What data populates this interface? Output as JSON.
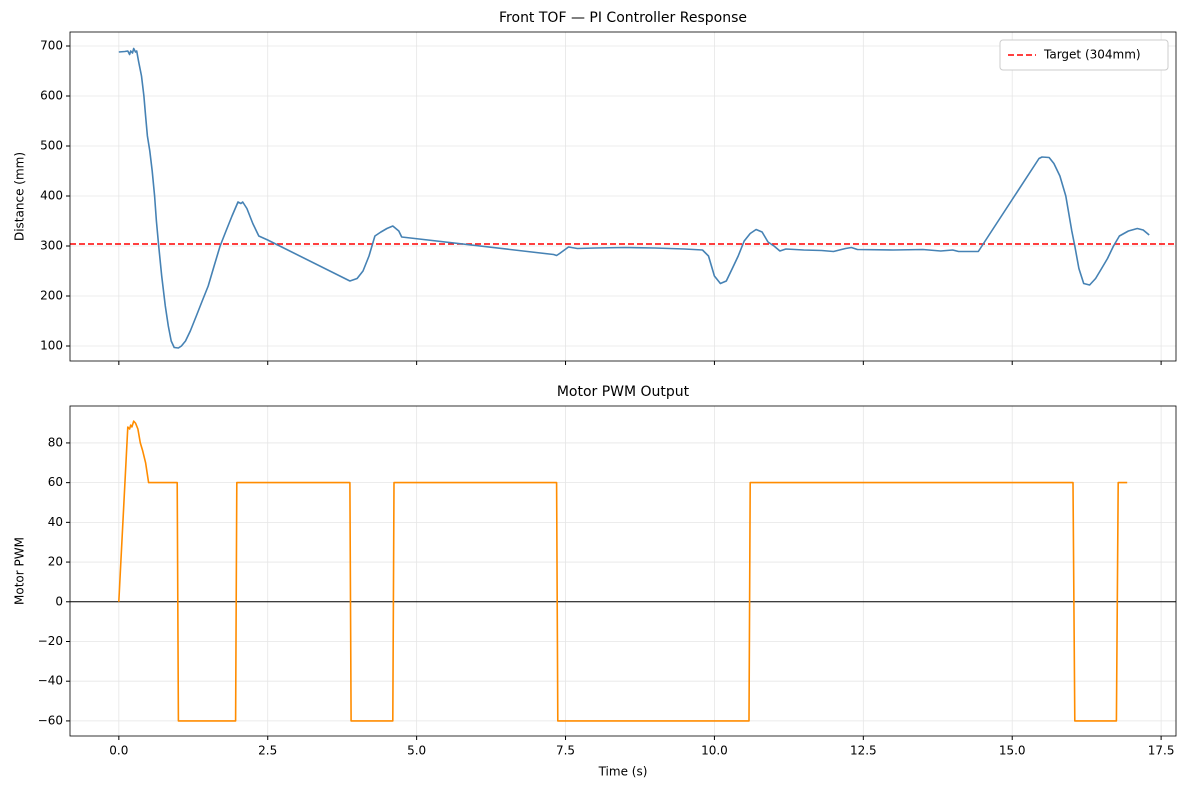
{
  "chart_data": [
    {
      "type": "line",
      "title": "Front TOF — PI Controller Response",
      "ylabel": "Distance (mm)",
      "xlim": [
        -0.82,
        17.75
      ],
      "ylim": [
        70,
        728
      ],
      "xticks": [
        {
          "value": 0,
          "label": "0.0"
        },
        2.5,
        {
          "value": 5,
          "label": "5.0"
        },
        7.5,
        {
          "value": 10,
          "label": "10.0"
        },
        12.5,
        {
          "value": 15,
          "label": "15.0"
        },
        17.5
      ],
      "yticks": [
        100,
        200,
        300,
        400,
        500,
        600,
        700
      ],
      "grid": true,
      "legend": "upper right",
      "series": [
        {
          "color": "#4682b4",
          "x": [
            0,
            0.1,
            0.15,
            0.18,
            0.2,
            0.23,
            0.25,
            0.28,
            0.3,
            0.33,
            0.38,
            0.42,
            0.45,
            0.48,
            0.52,
            0.56,
            0.6,
            0.63,
            0.67,
            0.72,
            0.78,
            0.83,
            0.88,
            0.93,
            1.0,
            1.05,
            1.12,
            1.2,
            1.3,
            1.4,
            1.5,
            1.6,
            1.7,
            1.8,
            1.9,
            2.0,
            2.05,
            2.08,
            2.15,
            2.25,
            2.35,
            2.5,
            3.88,
            4.0,
            4.1,
            4.2,
            4.3,
            4.4,
            4.5,
            4.6,
            4.7,
            4.75,
            7.3,
            7.35,
            7.4,
            7.55,
            7.7,
            8.0,
            8.5,
            9.0,
            9.5,
            9.8,
            9.9,
            10.0,
            10.1,
            10.2,
            10.3,
            10.4,
            10.5,
            10.6,
            10.7,
            10.8,
            10.9,
            11.0,
            11.1,
            11.2,
            11.5,
            11.8,
            12.0,
            12.2,
            12.3,
            12.4,
            13.0,
            13.5,
            13.8,
            14.0,
            14.1,
            14.43,
            15.45,
            15.5,
            15.62,
            15.7,
            15.8,
            15.9,
            16.0,
            16.05,
            16.12,
            16.2,
            16.3,
            16.4,
            16.5,
            16.6,
            16.7,
            16.8,
            16.95,
            17.1,
            17.2,
            17.3
          ],
          "values": [
            688,
            689,
            690,
            683,
            690,
            686,
            695,
            688,
            690,
            670,
            640,
            600,
            560,
            520,
            490,
            450,
            400,
            350,
            300,
            240,
            180,
            140,
            110,
            97,
            96,
            100,
            110,
            130,
            160,
            190,
            220,
            260,
            300,
            330,
            360,
            388,
            385,
            388,
            375,
            345,
            320,
            312,
            230,
            235,
            250,
            280,
            320,
            328,
            335,
            340,
            330,
            318,
            283,
            281,
            285,
            298,
            295,
            296,
            297,
            296,
            294,
            292,
            280,
            240,
            225,
            230,
            255,
            280,
            310,
            325,
            333,
            328,
            308,
            300,
            290,
            294,
            292,
            291,
            289,
            295,
            297,
            293,
            292,
            293,
            290,
            292,
            289,
            289,
            475,
            478,
            477,
            465,
            440,
            400,
            330,
            300,
            255,
            225,
            222,
            235,
            255,
            275,
            300,
            320,
            330,
            335,
            332,
            322
          ]
        }
      ],
      "hlines": [
        {
          "name": "Target (304mm)",
          "value": 304,
          "color": "#ff0000",
          "dashed": true
        }
      ]
    },
    {
      "type": "line",
      "title": "Motor PWM Output",
      "ylabel": "Motor PWM",
      "xlabel": "Time (s)",
      "xlim": [
        -0.82,
        17.75
      ],
      "ylim": [
        -67.6,
        98.6
      ],
      "xticks": [
        {
          "value": 0,
          "label": "0.0"
        },
        2.5,
        {
          "value": 5,
          "label": "5.0"
        },
        7.5,
        {
          "value": 10,
          "label": "10.0"
        },
        12.5,
        {
          "value": 15,
          "label": "15.0"
        },
        17.5
      ],
      "yticks": [
        {
          "value": -60,
          "label": "−60"
        },
        {
          "value": -40,
          "label": "−40"
        },
        {
          "value": -20,
          "label": "−20"
        },
        0,
        20,
        40,
        60,
        80
      ],
      "grid": true,
      "series": [
        {
          "color": "#ff8c00",
          "x": [
            0,
            0.15,
            0.18,
            0.2,
            0.22,
            0.25,
            0.28,
            0.32,
            0.36,
            0.4,
            0.45,
            0.5,
            0.98,
            1.0,
            1.96,
            1.98,
            3.88,
            3.9,
            4.6,
            4.62,
            7.35,
            7.37,
            10.58,
            10.6,
            16.02,
            16.05,
            16.75,
            16.78,
            16.93
          ],
          "values": [
            0,
            88,
            87,
            89,
            88,
            91,
            90,
            87,
            80,
            76,
            70,
            60,
            60,
            -60,
            -60,
            60,
            60,
            -60,
            -60,
            60,
            60,
            -60,
            -60,
            60,
            60,
            -60,
            -60,
            60,
            60
          ]
        }
      ],
      "hlines": [
        {
          "value": 0,
          "color": "#000000",
          "dashed": false
        }
      ]
    }
  ]
}
